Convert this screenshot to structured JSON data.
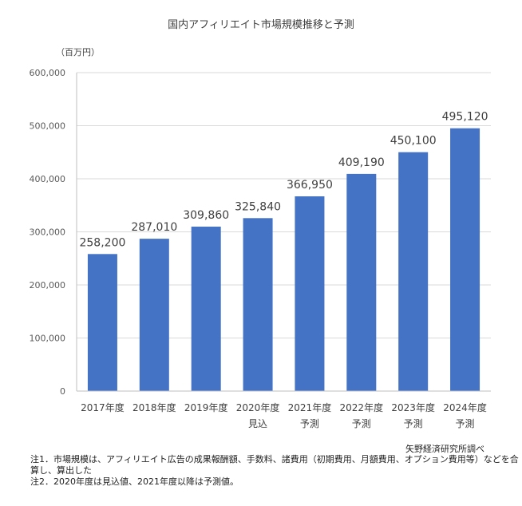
{
  "chart_data": {
    "type": "bar",
    "title": "国内アフィリエイト市場規模推移と予測",
    "ylabel": "（百万円）",
    "xlabel": "",
    "ylim": [
      0,
      600000
    ],
    "yticks": [
      0,
      100000,
      200000,
      300000,
      400000,
      500000,
      600000
    ],
    "ytick_labels": [
      "0",
      "100,000",
      "200,000",
      "300,000",
      "400,000",
      "500,000",
      "600,000"
    ],
    "grid": true,
    "categories": [
      [
        "2017年度",
        ""
      ],
      [
        "2018年度",
        ""
      ],
      [
        "2019年度",
        ""
      ],
      [
        "2020年度",
        "見込"
      ],
      [
        "2021年度",
        "予測"
      ],
      [
        "2022年度",
        "予測"
      ],
      [
        "2023年度",
        "予測"
      ],
      [
        "2024年度",
        "予測"
      ]
    ],
    "values": [
      258200,
      287010,
      309860,
      325840,
      366950,
      409190,
      450100,
      495120
    ],
    "data_labels": [
      "258,200",
      "287,010",
      "309,860",
      "325,840",
      "366,950",
      "409,190",
      "450,100",
      "495,120"
    ],
    "bar_color": "#4472c4",
    "grid_color": "#d9d9d9"
  },
  "source": "矢野経済研究所調べ",
  "notes": [
    "注1．市場規模は、アフィリエイト広告の成果報酬額、手数料、諸費用（初期費用、月額費用、オプション費用等）などを合",
    "算し、算出した",
    "注2．2020年度は見込値、2021年度以降は予測値。"
  ]
}
